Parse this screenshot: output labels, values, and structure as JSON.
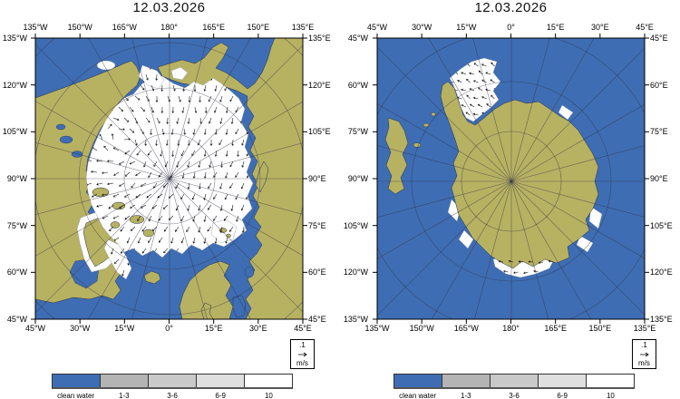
{
  "colors": {
    "ocean": "#3e6db3",
    "land": "#b7b162",
    "ice": "#ffffff",
    "gray1": "#b4b4b4",
    "gray2": "#c9c9c9",
    "gray3": "#dfdfdf",
    "white": "#ffffff"
  },
  "maps": {
    "arctic": {
      "title": "12.03.2026",
      "top_labels": [
        "135°W",
        "150°W",
        "165°W",
        "180°",
        "165°E",
        "150°E",
        "135°E"
      ],
      "bottom_labels": [
        "45°W",
        "30°W",
        "15°W",
        "0°",
        "15°E",
        "30°E",
        "45°E"
      ],
      "left_labels": [
        "135°W",
        "120°W",
        "105°W",
        "90°W",
        "75°W",
        "60°W",
        "45°W"
      ],
      "right_labels": [
        "135°E",
        "120°E",
        "105°E",
        "90°E",
        "75°E",
        "60°E",
        "45°E"
      ],
      "vector_scale": {
        "value": ".1",
        "unit": "m/s"
      }
    },
    "antarctic": {
      "title": "12.03.2026",
      "top_labels": [
        "45°W",
        "30°W",
        "15°W",
        "0°",
        "15°E",
        "30°E",
        "45°E"
      ],
      "bottom_labels": [
        "135°W",
        "150°W",
        "165°W",
        "180°",
        "165°E",
        "150°E",
        "135°E"
      ],
      "left_labels": [
        "45°W",
        "60°W",
        "75°W",
        "90°W",
        "105°W",
        "120°W",
        "135°W"
      ],
      "right_labels": [
        "45°E",
        "60°E",
        "75°E",
        "90°E",
        "105°E",
        "120°E",
        "135°E"
      ],
      "vector_scale": {
        "value": ".1",
        "unit": "m/s"
      }
    }
  },
  "legend": {
    "items": [
      {
        "label": "clean water",
        "color": "#3e6db3"
      },
      {
        "label": "1-3",
        "color": "#b4b4b4"
      },
      {
        "label": "3-6",
        "color": "#c9c9c9"
      },
      {
        "label": "6-9",
        "color": "#dfdfdf"
      },
      {
        "label": "10",
        "color": "#ffffff"
      }
    ]
  }
}
